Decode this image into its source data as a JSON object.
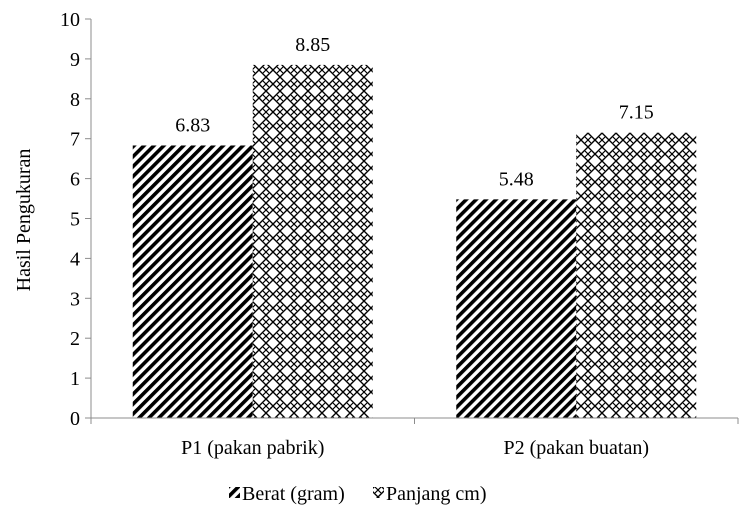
{
  "chart_data": {
    "type": "bar",
    "categories": [
      "P1 (pakan pabrik)",
      "P2 (pakan buatan)"
    ],
    "series": [
      {
        "name": "Berat (gram)",
        "values": [
          6.83,
          5.48
        ],
        "pattern": "diagonal-stripes"
      },
      {
        "name": "Panjang cm)",
        "values": [
          8.85,
          7.15
        ],
        "pattern": "zigzag"
      }
    ],
    "value_labels": [
      [
        "6.83",
        "5.48"
      ],
      [
        "8.85",
        "7.15"
      ]
    ],
    "ylabel": "Hasil Pengukuran",
    "xlabel": "",
    "ylim": [
      0,
      10
    ],
    "yticks": [
      "0",
      "1",
      "2",
      "3",
      "4",
      "5",
      "6",
      "7",
      "8",
      "9",
      "10"
    ],
    "legend_position": "bottom",
    "grid": false,
    "colors": {
      "ink": "#000000",
      "background": "#ffffff",
      "axis": "#8c8c8c"
    }
  }
}
